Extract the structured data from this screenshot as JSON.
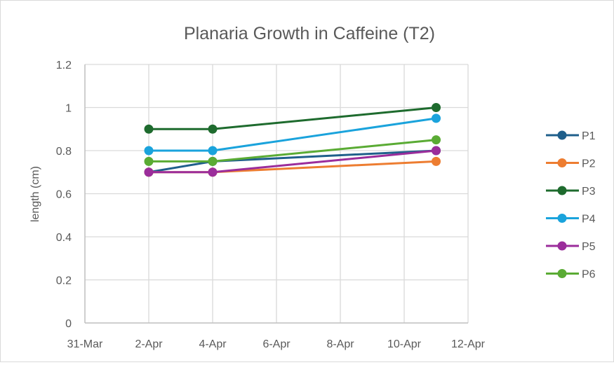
{
  "chart_data": {
    "type": "line",
    "title": "Planaria Growth in Caffeine (T2)",
    "xlabel": "",
    "ylabel": "length (cm)",
    "x_ticks": [
      "31-Mar",
      "2-Apr",
      "4-Apr",
      "6-Apr",
      "8-Apr",
      "10-Apr",
      "12-Apr"
    ],
    "x_range_days": [
      0,
      12
    ],
    "y_ticks": [
      "0",
      "0.2",
      "0.4",
      "0.6",
      "0.8",
      "1",
      "1.2"
    ],
    "ylim": [
      0,
      1.2
    ],
    "grid": true,
    "legend_position": "right",
    "x": [
      "2-Apr",
      "4-Apr",
      "11-Apr"
    ],
    "x_days": [
      2,
      4,
      11
    ],
    "series": [
      {
        "name": "P1",
        "color": "#1f5f8b",
        "values": [
          0.7,
          0.75,
          0.8
        ]
      },
      {
        "name": "P2",
        "color": "#ed7d31",
        "values": [
          0.7,
          0.7,
          0.75
        ]
      },
      {
        "name": "P3",
        "color": "#1e6b2e",
        "values": [
          0.9,
          0.9,
          1.0
        ]
      },
      {
        "name": "P4",
        "color": "#1aa3dc",
        "values": [
          0.8,
          0.8,
          0.95
        ]
      },
      {
        "name": "P5",
        "color": "#9b2d9b",
        "values": [
          0.7,
          0.7,
          0.8
        ]
      },
      {
        "name": "P6",
        "color": "#5aab34",
        "values": [
          0.75,
          0.75,
          0.85
        ]
      }
    ]
  }
}
